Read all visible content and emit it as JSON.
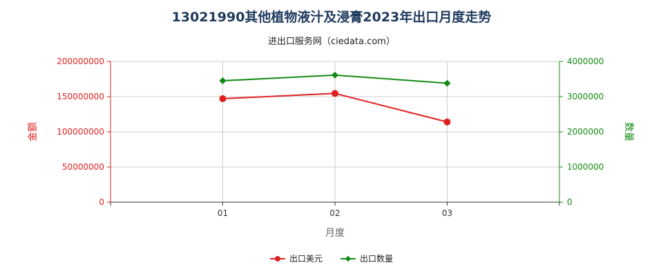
{
  "title": "13021990其他植物液汁及浸膏2023年出口月度走势",
  "subtitle": "进出口服务网（ciedata.com）",
  "colors": {
    "left_axis": "#e02020",
    "right_axis": "#138a13",
    "grid": "#cccccc",
    "axis": "#333333"
  },
  "chart_data": {
    "type": "line",
    "categories": [
      "01",
      "02",
      "03"
    ],
    "xlabel": "月度",
    "ylabel_left": "金额",
    "ylabel_right": "数量",
    "ylim_left": [
      0,
      200000000
    ],
    "ylim_right": [
      0,
      4000000
    ],
    "yticks_left": [
      "0",
      "50000000",
      "100000000",
      "150000000",
      "200000000"
    ],
    "yticks_right": [
      "0",
      "1000000",
      "2000000",
      "3000000",
      "4000000"
    ],
    "grid": true,
    "legend_position": "bottom-center",
    "series": [
      {
        "name": "出口美元",
        "axis": "left",
        "color": "#e02020",
        "marker": "circle",
        "values": [
          147000000,
          154500000,
          114000000
        ]
      },
      {
        "name": "出口数量",
        "axis": "right",
        "color": "#138a13",
        "marker": "diamond",
        "values": [
          3450000,
          3610000,
          3380000
        ]
      }
    ]
  }
}
